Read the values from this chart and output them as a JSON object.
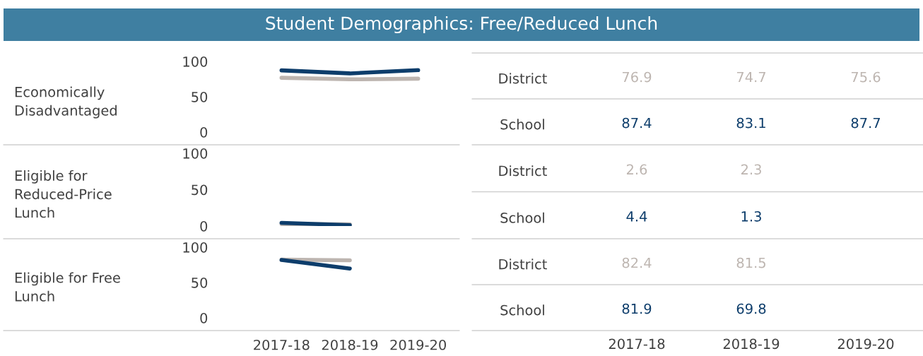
{
  "chart_data": [
    {
      "type": "line",
      "title": "Student Demographics: Free/Reduced Lunch",
      "ylabel": "Economically\nDisadvantaged",
      "categories": [
        "2017-18",
        "2018-19",
        "2019-20"
      ],
      "ylim": [
        0,
        100
      ],
      "yticks": [
        0,
        50,
        100
      ],
      "tick_labels": "y",
      "grid": false,
      "legend": false,
      "marker": "none",
      "series": [
        {
          "color": "#bdb5b0",
          "values": [
            76.9,
            74.7,
            75.6
          ]
        },
        {
          "color": "#0d3d6b",
          "values": [
            87.4,
            83.1,
            87.7
          ]
        }
      ]
    },
    {
      "type": "heatmap",
      "categories": [
        "2017-18",
        "2018-19",
        "2019-20"
      ],
      "y_categories": [
        "District",
        "School"
      ],
      "tick_labels": "y",
      "data_labels": true,
      "cells": [
        [
          76.9,
          74.7,
          75.6
        ],
        [
          87.4,
          83.1,
          87.7
        ]
      ]
    },
    {
      "type": "line",
      "ylabel": "Eligible for\nReduced-Price\nLunch",
      "categories": [
        "2017-18",
        "2018-19",
        "2019-20"
      ],
      "ylim": [
        0,
        100
      ],
      "yticks": [
        0,
        50,
        100
      ],
      "tick_labels": "y",
      "grid": false,
      "legend": false,
      "marker": "none",
      "series": [
        {
          "color": "#bdb5b0",
          "values": [
            2.6,
            2.3,
            null
          ]
        },
        {
          "color": "#0d3d6b",
          "values": [
            4.4,
            1.3,
            null
          ]
        }
      ]
    },
    {
      "type": "heatmap",
      "categories": [
        "2017-18",
        "2018-19",
        "2019-20"
      ],
      "y_categories": [
        "District",
        "School"
      ],
      "tick_labels": "y",
      "data_labels": true,
      "cells": [
        [
          2.6,
          2.3,
          null
        ],
        [
          4.4,
          1.3,
          null
        ]
      ]
    },
    {
      "type": "line",
      "ylabel": "Eligible for Free\nLunch",
      "categories": [
        "2017-18",
        "2018-19",
        "2019-20"
      ],
      "ylim": [
        0,
        100
      ],
      "yticks": [
        0,
        50,
        100
      ],
      "grid": false,
      "legend": false,
      "marker": "none",
      "series": [
        {
          "color": "#bdb5b0",
          "values": [
            82.4,
            81.5,
            null
          ]
        },
        {
          "color": "#0d3d6b",
          "values": [
            81.9,
            69.8,
            null
          ]
        }
      ]
    },
    {
      "type": "heatmap",
      "categories": [
        "2017-18",
        "2018-19",
        "2019-20"
      ],
      "y_categories": [
        "District",
        "School"
      ],
      "data_labels": true,
      "cells": [
        [
          82.4,
          81.5,
          null
        ],
        [
          81.9,
          69.8,
          null
        ]
      ]
    }
  ]
}
